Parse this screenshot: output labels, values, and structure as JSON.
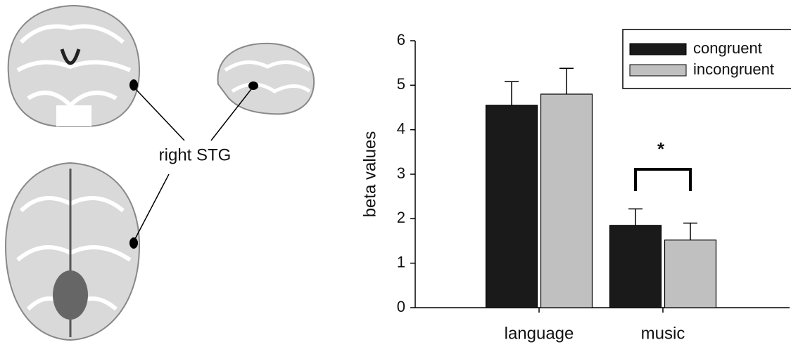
{
  "figure_label": "right STG",
  "chart_data": {
    "type": "bar",
    "ylabel": "beta values",
    "categories": [
      "language",
      "music"
    ],
    "series": [
      {
        "name": "congruent",
        "color": "#1a1a1a",
        "values": [
          4.55,
          1.85
        ],
        "errors": [
          0.53,
          0.37
        ]
      },
      {
        "name": "incongruent",
        "color": "#c0c0c0",
        "values": [
          4.8,
          1.52
        ],
        "errors": [
          0.58,
          0.38
        ]
      }
    ],
    "annotation": "*",
    "ylim": [
      0,
      6
    ],
    "yticks": [
      0,
      1,
      2,
      3,
      4,
      5,
      6
    ],
    "legend": "upper right"
  }
}
